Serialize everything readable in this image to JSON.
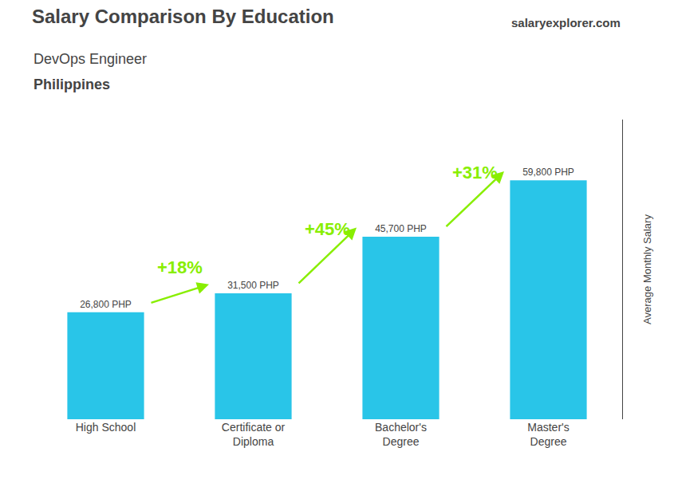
{
  "chart_data": {
    "type": "bar",
    "title": "Salary Comparison By Education",
    "subtitle": "DevOps Engineer",
    "annotations": [
      "Philippines",
      "salaryexplorer.com"
    ],
    "categories": [
      "High School",
      "Certificate or\nDiploma",
      "Bachelor's\nDegree",
      "Master's\nDegree"
    ],
    "values": [
      26800,
      31500,
      45700,
      59800
    ],
    "value_labels": [
      "26,800 PHP",
      "31,500 PHP",
      "45,700 PHP",
      "59,800 PHP"
    ],
    "data_labels": true,
    "color": "#29c5e8",
    "pct_labels": [
      "+18%",
      "+45%",
      "+31%"
    ],
    "pct_color": "#88ee00",
    "ylabel": "Average Monthly Salary",
    "ylim": [
      0,
      75000
    ],
    "tick_labels": "x",
    "grid": false
  }
}
